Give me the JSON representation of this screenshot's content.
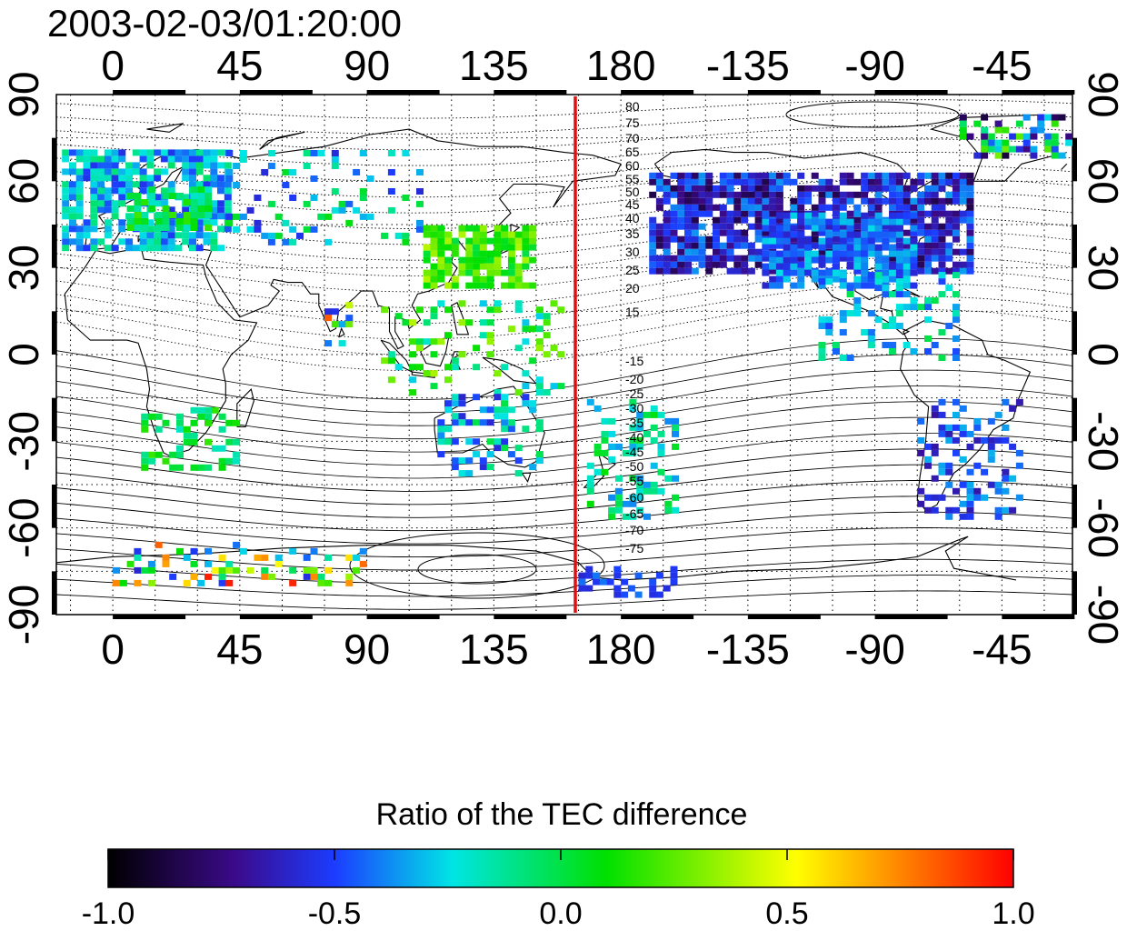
{
  "title": "2003-02-03/01:20:00",
  "colorbar": {
    "label": "Ratio of the TEC difference",
    "ticks": [
      "-1.0",
      "-0.5",
      "0.0",
      "0.5",
      "1.0"
    ],
    "colormap": [
      "#000000",
      "#3b0a8a",
      "#1c3cff",
      "#00e5e5",
      "#00e000",
      "#ffff00",
      "#ff8000",
      "#ff0000"
    ]
  },
  "map": {
    "projection": "equirectangular",
    "lon_range": [
      -20,
      340
    ],
    "lat_range": [
      -90,
      90
    ],
    "lon_ticks": [
      "0",
      "45",
      "90",
      "135",
      "180",
      "-135",
      "-90",
      "-45"
    ],
    "lat_ticks": [
      "90",
      "60",
      "30",
      "0",
      "-30",
      "-60",
      "-90"
    ],
    "grid": "dotted, every 15 degrees",
    "marker_line": {
      "lon": 163,
      "color": "#e01010"
    },
    "magnetic_latitude_labels": [
      "80",
      "75",
      "70",
      "65",
      "60",
      "55",
      "50",
      "45",
      "40",
      "35",
      "30",
      "25",
      "20",
      "15",
      "-15",
      "-20",
      "-25",
      "-30",
      "-35",
      "-40",
      "-45",
      "-50",
      "-55",
      "-60",
      "-65",
      "-70",
      "-75"
    ]
  }
}
